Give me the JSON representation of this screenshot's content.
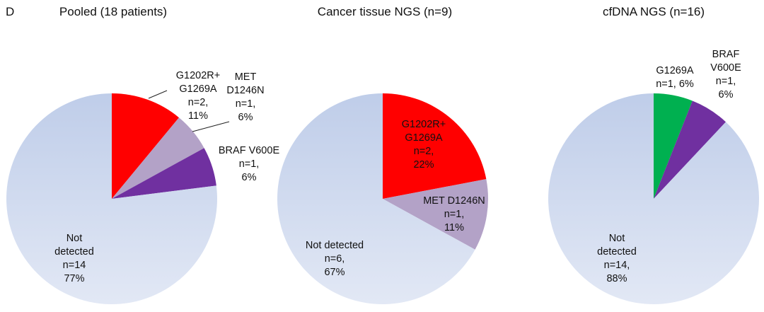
{
  "panel_label": "D",
  "chart_data": [
    {
      "type": "pie",
      "title": "Pooled (18 patients)",
      "slices": [
        {
          "name": "G1202R+ G1269A",
          "value": 11,
          "color": "#ff0000",
          "label_lines": [
            "G1202R+",
            "G1269A",
            "n=2,",
            "11%"
          ]
        },
        {
          "name": "MET D1246N",
          "value": 6,
          "color": "#b3a2c7",
          "label_lines": [
            "MET",
            "D1246N",
            "n=1,",
            "6%"
          ]
        },
        {
          "name": "BRAF V600E",
          "value": 6,
          "color": "#7030a0",
          "label_lines": [
            "BRAF V600E",
            "n=1,",
            "6%"
          ]
        },
        {
          "name": "Not detected",
          "value": 77,
          "color": "#c6d3ec",
          "label_lines": [
            "Not",
            "detected",
            "n=14",
            "77%"
          ]
        }
      ]
    },
    {
      "type": "pie",
      "title": "Cancer tissue NGS (n=9)",
      "slices": [
        {
          "name": "G1202R+ G1269A",
          "value": 22,
          "color": "#ff0000",
          "label_lines": [
            "G1202R+",
            "G1269A",
            "n=2,",
            "22%"
          ]
        },
        {
          "name": "MET D1246N",
          "value": 11,
          "color": "#b3a2c7",
          "label_lines": [
            "MET D1246N",
            "n=1,",
            "11%"
          ]
        },
        {
          "name": "Not detected",
          "value": 67,
          "color": "#c6d3ec",
          "label_lines": [
            "Not detected",
            "n=6,",
            "67%"
          ]
        }
      ]
    },
    {
      "type": "pie",
      "title": "cfDNA NGS (n=16)",
      "slices": [
        {
          "name": "G1269A",
          "value": 6,
          "color": "#00b050",
          "label_lines": [
            "G1269A",
            "n=1, 6%"
          ]
        },
        {
          "name": "BRAF V600E",
          "value": 6,
          "color": "#7030a0",
          "label_lines": [
            "BRAF",
            "V600E",
            "n=1,",
            "6%"
          ]
        },
        {
          "name": "Not detected",
          "value": 88,
          "color": "#c6d3ec",
          "label_lines": [
            "Not",
            "detected",
            "n=14,",
            "88%"
          ]
        }
      ]
    }
  ]
}
